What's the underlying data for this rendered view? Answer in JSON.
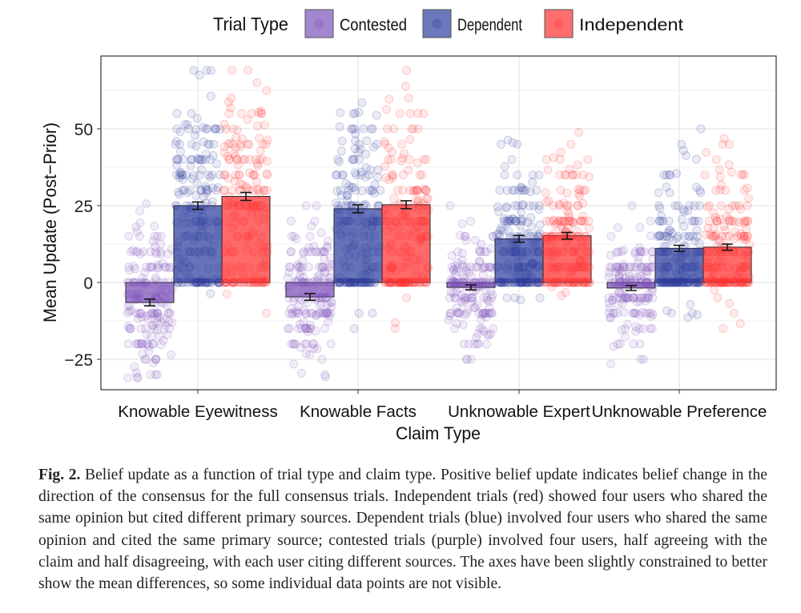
{
  "chart_data": {
    "type": "bar",
    "xlabel": "Claim Type",
    "ylabel": "Mean Update (Post−Prior)",
    "ylim": [
      -35,
      74
    ],
    "yticks": [
      -25,
      0,
      25,
      50
    ],
    "ytick_labels": [
      "−25",
      "0",
      "25",
      "50"
    ],
    "grid": true,
    "legend": {
      "title": "Trial Type",
      "placement": "top"
    },
    "categories": [
      "Knowable Eyewitness",
      "Knowable Facts",
      "Unknowable Expert",
      "Unknowable Preference"
    ],
    "series": [
      {
        "name": "Contested",
        "color": "#7b52b9",
        "values": [
          -6.5,
          -4.7,
          -1.6,
          -1.8
        ],
        "error": [
          1.1,
          1.1,
          0.8,
          0.8
        ]
      },
      {
        "name": "Dependent",
        "color": "#2d3f9e",
        "values": [
          25.0,
          24.0,
          14.2,
          11.1
        ],
        "error": [
          1.2,
          1.3,
          1.1,
          1.0
        ]
      },
      {
        "name": "Independent",
        "color": "#ff3030",
        "values": [
          28.0,
          25.3,
          15.2,
          11.5
        ],
        "error": [
          1.3,
          1.3,
          1.1,
          1.0
        ]
      }
    ],
    "overlay": "jittered individual data points"
  },
  "caption": {
    "label": "Fig. 2.",
    "text": "Belief update as a function of trial type and claim type. Positive belief update indicates belief change in the direction of the consensus for the full consensus trials. Independent trials (red) showed four users who shared the same opinion but cited different primary sources. Dependent trials (blue) involved four users who shared the same opinion and cited the same primary source; contested trials (purple) involved four users, half agreeing with the claim and half disagreeing, with each user citing different sources. The axes have been slightly constrained to better show the mean differences, so some individual data points are not visible."
  }
}
